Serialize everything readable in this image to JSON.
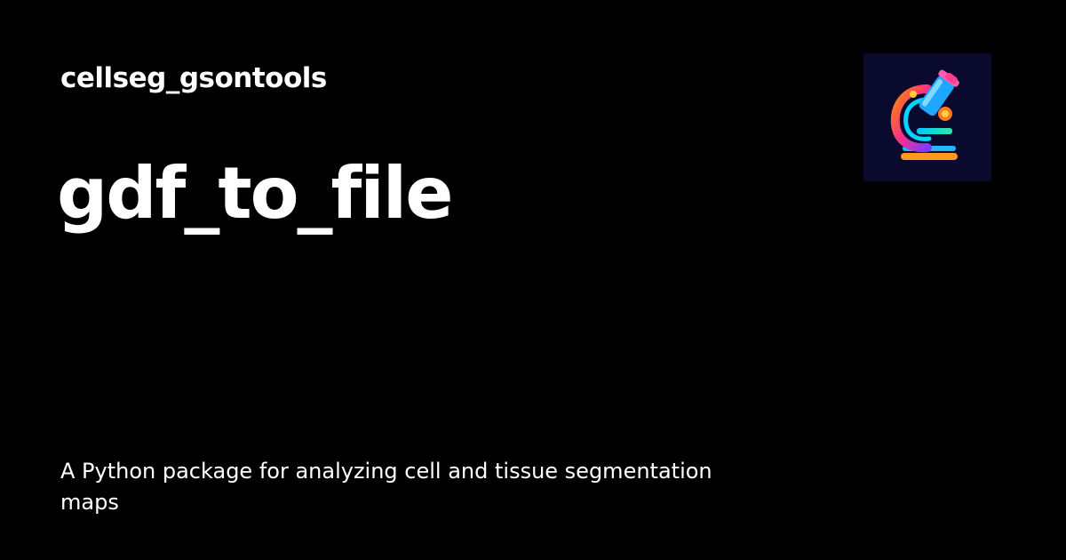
{
  "header": {
    "site_name": "cellseg_gsontools"
  },
  "main": {
    "title": "gdf_to_file",
    "description": "A Python package for analyzing cell and tissue segmentation maps"
  },
  "logo": {
    "icon": "microscope-icon",
    "background_color": "#0a0a2e"
  },
  "colors": {
    "background": "#000000",
    "text": "#ffffff"
  }
}
